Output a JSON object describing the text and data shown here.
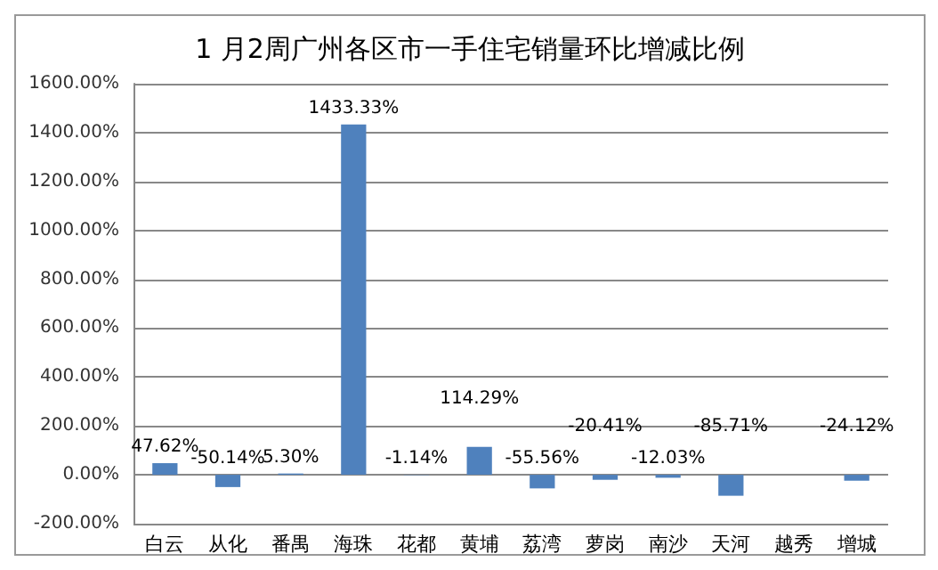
{
  "chart_data": {
    "type": "bar",
    "title": "1 月2周广州各区市一手住宅销量环比增减比例",
    "categories": [
      "白云",
      "从化",
      "番禺",
      "海珠",
      "花都",
      "黄埔",
      "荔湾",
      "萝岗",
      "南沙",
      "天河",
      "越秀",
      "增城"
    ],
    "values": [
      47.62,
      -50.14,
      5.3,
      1433.33,
      -1.14,
      114.29,
      -55.56,
      -20.41,
      -12.03,
      -85.71,
      null,
      -24.12
    ],
    "value_labels": [
      "47.62%",
      "-50.14%",
      "5.30%",
      "1433.33%",
      "-1.14%",
      "114.29%",
      "-55.56%",
      "-20.41%",
      "-12.03%",
      "-85.71%",
      null,
      "-24.12%"
    ],
    "color": "#4f81bd",
    "ylim": [
      -200,
      1600
    ],
    "yticks": [
      {
        "value": -200,
        "label": "-200.00%"
      },
      {
        "value": 0,
        "label": "0.00%"
      },
      {
        "value": 200,
        "label": "200.00%"
      },
      {
        "value": 400,
        "label": "400.00%"
      },
      {
        "value": 600,
        "label": "600.00%"
      },
      {
        "value": 800,
        "label": "800.00%"
      },
      {
        "value": 1000,
        "label": "1000.00%"
      },
      {
        "value": 1200,
        "label": "1200.00%"
      },
      {
        "value": 1400,
        "label": "1400.00%"
      },
      {
        "value": 1600,
        "label": "1600.00%"
      }
    ],
    "grid": "y"
  }
}
